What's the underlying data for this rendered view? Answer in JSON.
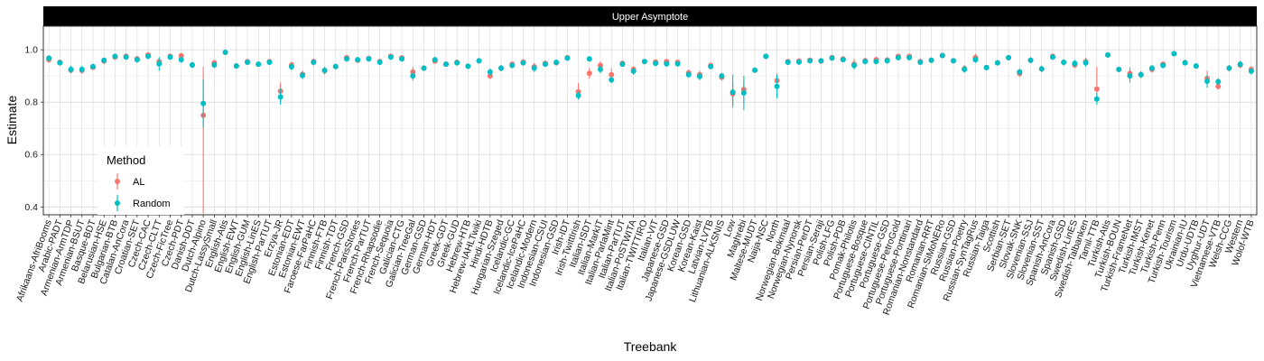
{
  "chart_data": {
    "type": "scatter",
    "facet_title": "Upper Asymptote",
    "xlabel": "Treebank",
    "ylabel": "Estimate",
    "ylim": [
      0.37,
      1.09
    ],
    "yticks": [
      0.4,
      0.6,
      0.8,
      1.0
    ],
    "ytick_labels": [
      "0.4",
      "0.6",
      "0.8",
      "1.0"
    ],
    "grid": true,
    "legend": {
      "title": "Method",
      "position": "left-inside",
      "entries": [
        {
          "label": "AL",
          "color": "#F8766D"
        },
        {
          "label": "Random",
          "color": "#00BFC4"
        }
      ]
    },
    "categories": [
      "Afrikaans-AfriBooms",
      "Arabic-PADT",
      "Armenian-ArmTDP",
      "Armenian-BSUT",
      "Basque-BDT",
      "Belarusian-HSE",
      "Bulgarian-BTB",
      "Catalan-AnCora",
      "Croatian-SET",
      "Czech-CAC",
      "Czech-CLTT",
      "Czech-FicTree",
      "Czech-PDT",
      "Danish-DDT",
      "Dutch-Alpino",
      "Dutch-LassySmall",
      "English-Atis",
      "English-EWT",
      "English-GUM",
      "English-LinES",
      "English-ParTUT",
      "Erzya-JR",
      "Estonian-EDT",
      "Estonian-EWT",
      "Faroese-FarPaHC",
      "Finnish-FTB",
      "Finnish-TDT",
      "French-GSD",
      "French-ParisStories",
      "French-ParTUT",
      "French-Rhapsodie",
      "French-Sequoia",
      "Galician-CTG",
      "Galician-TreeGal",
      "German-GSD",
      "German-HDT",
      "Greek-GDT",
      "Greek-GUD",
      "Hebrew-HTB",
      "Hebrew-IAHLTwiki",
      "Hindi-HDTB",
      "Hungarian-Szeged",
      "Icelandic-GC",
      "Icelandic-IcePaHC",
      "Icelandic-Modern",
      "Indonesian-CSUI",
      "Indonesian-GSD",
      "Irish-IDT",
      "Irish-TwittIrish",
      "Italian-ISDT",
      "Italian-MarkIT",
      "Italian-ParlaMint",
      "Italian-ParTUT",
      "Italian-PoSTWITA",
      "Italian-TWITTIRO",
      "Italian-VIT",
      "Japanese-GSD",
      "Japanese-GSDLUW",
      "Korean-GSD",
      "Korean-Kaist",
      "Latvian-LVTB",
      "Lithuanian-ALKSNIS",
      "Low",
      "Maghrebi",
      "Maltese-MUDT",
      "Naija-NSC",
      "North",
      "Norwegian-Bokmaal",
      "Norwegian-Nynorsk",
      "Persian-PerDT",
      "Persian-Seraji",
      "Polish-LFG",
      "Polish-PDB",
      "Pomak-Philotis",
      "Portuguese-Bosque",
      "Portuguese-CINTIL",
      "Portuguese-GSD",
      "Portuguese-PetroGold",
      "Portuguese-Porttinari",
      "Romanian-Nonstandard",
      "Romanian-RRT",
      "Romanian-SiMoNERo",
      "Russian-GSD",
      "Russian-Poetry",
      "Russian-SynTagRus",
      "Russian-Taiga",
      "Scottish",
      "Serbian-SET",
      "Slovak-SNK",
      "Slovenian-SSJ",
      "Slovenian-SST",
      "Spanish-AnCora",
      "Spanish-GSD",
      "Swedish-LinES",
      "Swedish-Talbanken",
      "Tamil-TTB",
      "Turkish-Atis",
      "Turkish-BOUN",
      "Turkish-FrameNet",
      "Turkish-IMST",
      "Turkish-Kenet",
      "Turkish-Penn",
      "Turkish-Tourism",
      "Ukrainian-IU",
      "Urdu-UDTB",
      "Uyghur-UDT",
      "Vietnamese-VTB",
      "Welsh-CCG",
      "Western",
      "Wolof-WTB"
    ],
    "series": [
      {
        "name": "AL",
        "color": "#F8766D",
        "values": [
          0.962,
          0.952,
          0.922,
          0.921,
          0.933,
          0.957,
          0.972,
          0.975,
          0.965,
          0.98,
          0.955,
          0.975,
          0.977,
          0.942,
          0.75,
          0.95,
          0.99,
          0.938,
          0.955,
          0.945,
          0.955,
          0.842,
          0.942,
          0.906,
          0.955,
          0.92,
          0.936,
          0.97,
          0.96,
          0.967,
          0.955,
          0.975,
          0.969,
          0.915,
          0.93,
          0.957,
          0.945,
          0.952,
          0.937,
          0.958,
          0.9,
          0.93,
          0.945,
          0.953,
          0.935,
          0.948,
          0.95,
          0.97,
          0.84,
          0.91,
          0.94,
          0.905,
          0.948,
          0.925,
          0.955,
          0.953,
          0.955,
          0.952,
          0.912,
          0.905,
          0.94,
          0.895,
          0.832,
          0.848,
          0.922,
          0.975,
          0.882,
          0.955,
          0.957,
          0.96,
          0.957,
          0.97,
          0.965,
          0.945,
          0.958,
          0.962,
          0.961,
          0.975,
          0.975,
          0.955,
          0.96,
          0.978,
          0.958,
          0.928,
          0.97,
          0.932,
          0.95,
          0.97,
          0.909,
          0.96,
          0.927,
          0.975,
          0.952,
          0.942,
          0.955,
          0.85,
          0.98,
          0.925,
          0.909,
          0.905,
          0.925,
          0.945,
          0.985,
          0.951,
          0.938,
          0.89,
          0.86,
          0.93,
          0.942,
          0.925
        ],
        "error_low": [
          0.95,
          0.942,
          0.91,
          0.908,
          0.925,
          0.946,
          0.964,
          0.968,
          0.953,
          0.972,
          0.94,
          0.966,
          0.968,
          0.932,
          0.375,
          0.938,
          0.985,
          0.928,
          0.945,
          0.935,
          0.946,
          0.8,
          0.93,
          0.892,
          0.944,
          0.905,
          0.926,
          0.96,
          0.952,
          0.958,
          0.945,
          0.968,
          0.96,
          0.89,
          0.92,
          0.947,
          0.935,
          0.942,
          0.927,
          0.948,
          0.888,
          0.918,
          0.935,
          0.943,
          0.92,
          0.937,
          0.94,
          0.96,
          0.81,
          0.89,
          0.925,
          0.88,
          0.938,
          0.912,
          0.945,
          0.943,
          0.945,
          0.942,
          0.9,
          0.89,
          0.93,
          0.882,
          0.79,
          0.8,
          0.912,
          0.965,
          0.85,
          0.945,
          0.947,
          0.95,
          0.947,
          0.962,
          0.955,
          0.925,
          0.946,
          0.952,
          0.95,
          0.965,
          0.967,
          0.945,
          0.95,
          0.97,
          0.948,
          0.915,
          0.955,
          0.922,
          0.94,
          0.96,
          0.897,
          0.948,
          0.915,
          0.967,
          0.94,
          0.93,
          0.94,
          0.8,
          0.972,
          0.915,
          0.885,
          0.892,
          0.913,
          0.935,
          0.977,
          0.94,
          0.928,
          0.86,
          0.848,
          0.918,
          0.93,
          0.912
        ],
        "error_high": [
          0.974,
          0.962,
          0.934,
          0.934,
          0.941,
          0.968,
          0.98,
          0.982,
          0.977,
          0.988,
          0.97,
          0.984,
          0.986,
          0.952,
          0.935,
          0.962,
          0.995,
          0.948,
          0.965,
          0.955,
          0.964,
          0.875,
          0.954,
          0.92,
          0.966,
          0.935,
          0.946,
          0.98,
          0.968,
          0.976,
          0.965,
          0.982,
          0.978,
          0.935,
          0.94,
          0.967,
          0.955,
          0.962,
          0.947,
          0.968,
          0.912,
          0.942,
          0.955,
          0.963,
          0.95,
          0.959,
          0.96,
          0.98,
          0.872,
          0.93,
          0.955,
          0.93,
          0.958,
          0.938,
          0.965,
          0.963,
          0.965,
          0.962,
          0.924,
          0.92,
          0.95,
          0.908,
          0.87,
          0.878,
          0.932,
          0.985,
          0.91,
          0.965,
          0.967,
          0.97,
          0.967,
          0.978,
          0.975,
          0.965,
          0.97,
          0.972,
          0.972,
          0.985,
          0.983,
          0.965,
          0.97,
          0.986,
          0.968,
          0.941,
          0.985,
          0.942,
          0.96,
          0.98,
          0.921,
          0.972,
          0.939,
          0.983,
          0.964,
          0.954,
          0.97,
          0.935,
          0.988,
          0.935,
          0.933,
          0.918,
          0.937,
          0.955,
          0.993,
          0.962,
          0.948,
          0.92,
          0.872,
          0.942,
          0.954,
          0.938
        ]
      },
      {
        "name": "Random",
        "color": "#00BFC4",
        "values": [
          0.968,
          0.95,
          0.925,
          0.925,
          0.936,
          0.96,
          0.975,
          0.972,
          0.962,
          0.975,
          0.946,
          0.972,
          0.962,
          0.942,
          0.795,
          0.942,
          0.99,
          0.938,
          0.952,
          0.945,
          0.952,
          0.82,
          0.935,
          0.902,
          0.952,
          0.921,
          0.936,
          0.965,
          0.962,
          0.965,
          0.952,
          0.972,
          0.965,
          0.9,
          0.93,
          0.962,
          0.945,
          0.95,
          0.937,
          0.958,
          0.915,
          0.93,
          0.94,
          0.95,
          0.93,
          0.945,
          0.952,
          0.968,
          0.825,
          0.965,
          0.925,
          0.885,
          0.945,
          0.918,
          0.955,
          0.948,
          0.946,
          0.946,
          0.905,
          0.898,
          0.936,
          0.9,
          0.838,
          0.835,
          0.922,
          0.975,
          0.86,
          0.952,
          0.953,
          0.958,
          0.958,
          0.968,
          0.962,
          0.94,
          0.955,
          0.955,
          0.958,
          0.97,
          0.97,
          0.952,
          0.96,
          0.978,
          0.958,
          0.925,
          0.962,
          0.932,
          0.95,
          0.97,
          0.915,
          0.96,
          0.927,
          0.972,
          0.952,
          0.948,
          0.95,
          0.812,
          0.98,
          0.925,
          0.9,
          0.905,
          0.93,
          0.94,
          0.985,
          0.95,
          0.938,
          0.88,
          0.878,
          0.93,
          0.945,
          0.918
        ],
        "error_low": [
          0.955,
          0.94,
          0.912,
          0.912,
          0.926,
          0.948,
          0.966,
          0.962,
          0.95,
          0.965,
          0.92,
          0.962,
          0.95,
          0.93,
          0.705,
          0.93,
          0.985,
          0.928,
          0.942,
          0.935,
          0.942,
          0.79,
          0.922,
          0.888,
          0.94,
          0.908,
          0.926,
          0.955,
          0.952,
          0.955,
          0.942,
          0.962,
          0.955,
          0.882,
          0.92,
          0.952,
          0.935,
          0.94,
          0.927,
          0.948,
          0.902,
          0.918,
          0.93,
          0.94,
          0.915,
          0.935,
          0.942,
          0.958,
          0.81,
          0.955,
          0.91,
          0.872,
          0.935,
          0.905,
          0.945,
          0.938,
          0.936,
          0.936,
          0.893,
          0.884,
          0.926,
          0.888,
          0.78,
          0.77,
          0.912,
          0.965,
          0.815,
          0.942,
          0.943,
          0.948,
          0.948,
          0.958,
          0.952,
          0.925,
          0.945,
          0.945,
          0.948,
          0.96,
          0.96,
          0.942,
          0.95,
          0.97,
          0.948,
          0.912,
          0.95,
          0.922,
          0.94,
          0.96,
          0.903,
          0.95,
          0.915,
          0.962,
          0.94,
          0.935,
          0.935,
          0.79,
          0.972,
          0.915,
          0.875,
          0.892,
          0.918,
          0.93,
          0.977,
          0.94,
          0.928,
          0.855,
          0.865,
          0.918,
          0.932,
          0.905
        ],
        "error_high": [
          0.978,
          0.96,
          0.938,
          0.938,
          0.946,
          0.97,
          0.984,
          0.982,
          0.974,
          0.985,
          0.972,
          0.982,
          0.974,
          0.954,
          0.885,
          0.954,
          0.995,
          0.948,
          0.962,
          0.955,
          0.962,
          0.852,
          0.948,
          0.916,
          0.964,
          0.934,
          0.946,
          0.975,
          0.972,
          0.975,
          0.962,
          0.982,
          0.975,
          0.918,
          0.94,
          0.972,
          0.955,
          0.96,
          0.947,
          0.968,
          0.928,
          0.942,
          0.95,
          0.96,
          0.945,
          0.955,
          0.962,
          0.978,
          0.84,
          0.975,
          0.94,
          0.898,
          0.955,
          0.931,
          0.965,
          0.958,
          0.956,
          0.956,
          0.917,
          0.912,
          0.946,
          0.912,
          0.905,
          0.9,
          0.932,
          0.985,
          0.905,
          0.962,
          0.963,
          0.968,
          0.968,
          0.978,
          0.972,
          0.955,
          0.965,
          0.965,
          0.968,
          0.98,
          0.98,
          0.962,
          0.97,
          0.986,
          0.968,
          0.938,
          0.974,
          0.942,
          0.96,
          0.98,
          0.927,
          0.97,
          0.939,
          0.982,
          0.964,
          0.961,
          0.965,
          0.835,
          0.988,
          0.935,
          0.925,
          0.918,
          0.942,
          0.95,
          0.993,
          0.96,
          0.948,
          0.905,
          0.891,
          0.942,
          0.958,
          0.931
        ]
      }
    ]
  }
}
